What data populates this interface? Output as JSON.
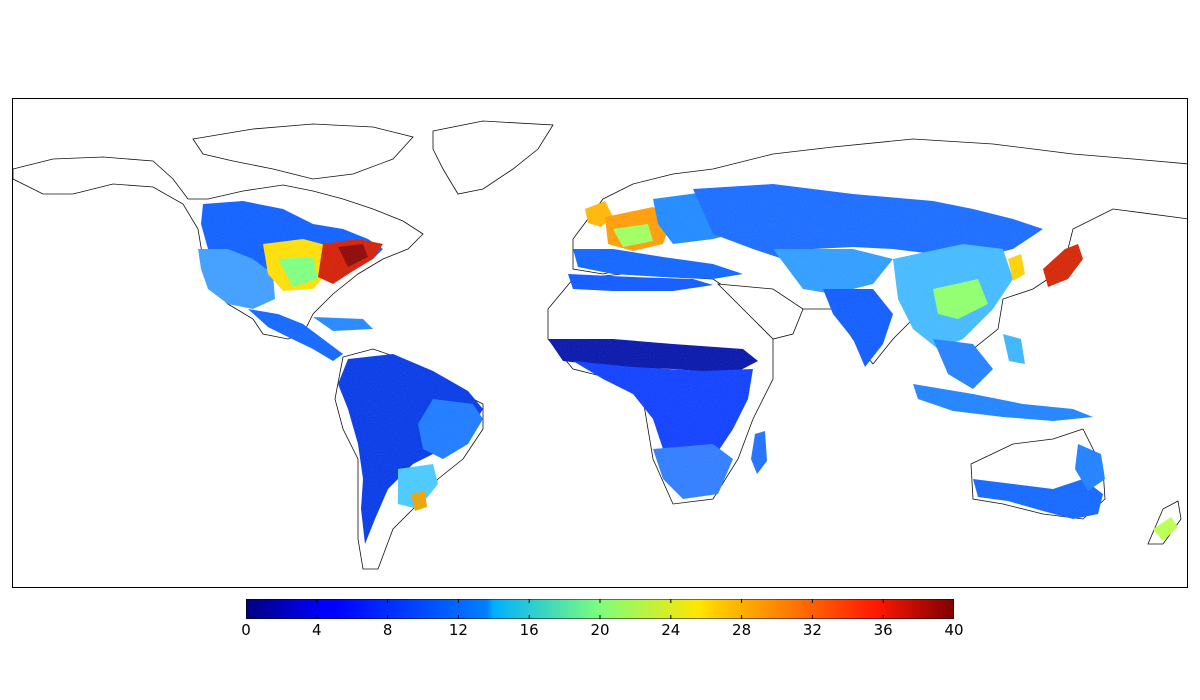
{
  "map": {
    "variable_range": [
      0,
      40
    ],
    "colormap": "jet",
    "no_data_color": "#ffffff",
    "coastline_color": "#000000"
  },
  "colorbar": {
    "min": 0,
    "max": 40,
    "tick_labels": [
      "0",
      "4",
      "8",
      "12",
      "16",
      "20",
      "24",
      "28",
      "32",
      "36",
      "40"
    ]
  },
  "chart_data": {
    "type": "heatmap",
    "projection": "plate-carree world map",
    "value_range": [
      0,
      40
    ],
    "colormap": "jet",
    "regions": [
      {
        "name": "Eastern United States",
        "value": 34
      },
      {
        "name": "US Midwest",
        "value": 24
      },
      {
        "name": "Western United States",
        "value": 9
      },
      {
        "name": "Canada (south)",
        "value": 7
      },
      {
        "name": "Mexico & Central America",
        "value": 7
      },
      {
        "name": "Amazon Basin",
        "value": 4
      },
      {
        "name": "Southern Brazil / Pampas",
        "value": 12
      },
      {
        "name": "Western Europe",
        "value": 24
      },
      {
        "name": "British Isles",
        "value": 27
      },
      {
        "name": "Eastern Europe",
        "value": 10
      },
      {
        "name": "Russia / Siberia",
        "value": 8
      },
      {
        "name": "Sahel",
        "value": 1
      },
      {
        "name": "Central & East Africa",
        "value": 5
      },
      {
        "name": "Southern Africa",
        "value": 7
      },
      {
        "name": "India",
        "value": 8
      },
      {
        "name": "Eastern China",
        "value": 18
      },
      {
        "name": "Japan",
        "value": 30
      },
      {
        "name": "Korea",
        "value": 24
      },
      {
        "name": "Southeast Asia",
        "value": 12
      },
      {
        "name": "Indonesia",
        "value": 10
      },
      {
        "name": "Australia (south-east)",
        "value": 5
      },
      {
        "name": "New Zealand",
        "value": 20
      }
    ]
  }
}
